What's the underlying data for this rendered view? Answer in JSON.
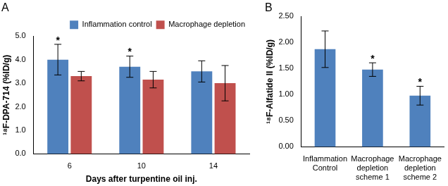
{
  "chart_data": [
    {
      "type": "bar",
      "title": "A",
      "y_label": "¹⁸F-DPA-714 (%ID/g)",
      "x_label": "Days after turpentine oil inj.",
      "categories": [
        "6",
        "10",
        "14"
      ],
      "series": [
        {
          "name": "Inflammation control",
          "color": "#4f81bd",
          "values": [
            4.0,
            3.7,
            3.5
          ],
          "errors": [
            0.65,
            0.45,
            0.45
          ],
          "significance": [
            "*",
            "*",
            null
          ]
        },
        {
          "name": "Macrophage depletion",
          "color": "#c0504d",
          "values": [
            3.3,
            3.15,
            3.0
          ],
          "errors": [
            0.2,
            0.35,
            0.75
          ]
        }
      ],
      "ylim": [
        0,
        5
      ],
      "yticks": [
        {
          "value": 0,
          "label": "0.0"
        },
        {
          "value": 1,
          "label": "1.0"
        },
        {
          "value": 2,
          "label": "2.0"
        },
        {
          "value": 3,
          "label": "3.0"
        },
        {
          "value": 4,
          "label": "4.0"
        },
        {
          "value": 5,
          "label": "5.0"
        }
      ],
      "grid": false,
      "legend": "upper right"
    },
    {
      "type": "bar",
      "title": "B",
      "y_label": "¹⁸F-Alfatide II (%ID/g)",
      "categories": [
        [
          "Inflammation",
          "Control"
        ],
        [
          "Macrophage",
          "depletion",
          "scheme 1"
        ],
        [
          "Macrophage",
          "depletion",
          "scheme 2"
        ]
      ],
      "values": [
        1.87,
        1.48,
        0.98
      ],
      "errors": [
        0.35,
        0.13,
        0.18
      ],
      "significance": [
        null,
        "*",
        "*"
      ],
      "color": "#4f81bd",
      "ylim": [
        0,
        2.5
      ],
      "yticks": [
        {
          "value": 0,
          "label": "0.00"
        },
        {
          "value": 0.5,
          "label": "0.50"
        },
        {
          "value": 1,
          "label": "1.00"
        },
        {
          "value": 1.5,
          "label": "1.50"
        },
        {
          "value": 2,
          "label": "2.00"
        },
        {
          "value": 2.5,
          "label": "2.50"
        }
      ],
      "grid": false
    }
  ]
}
